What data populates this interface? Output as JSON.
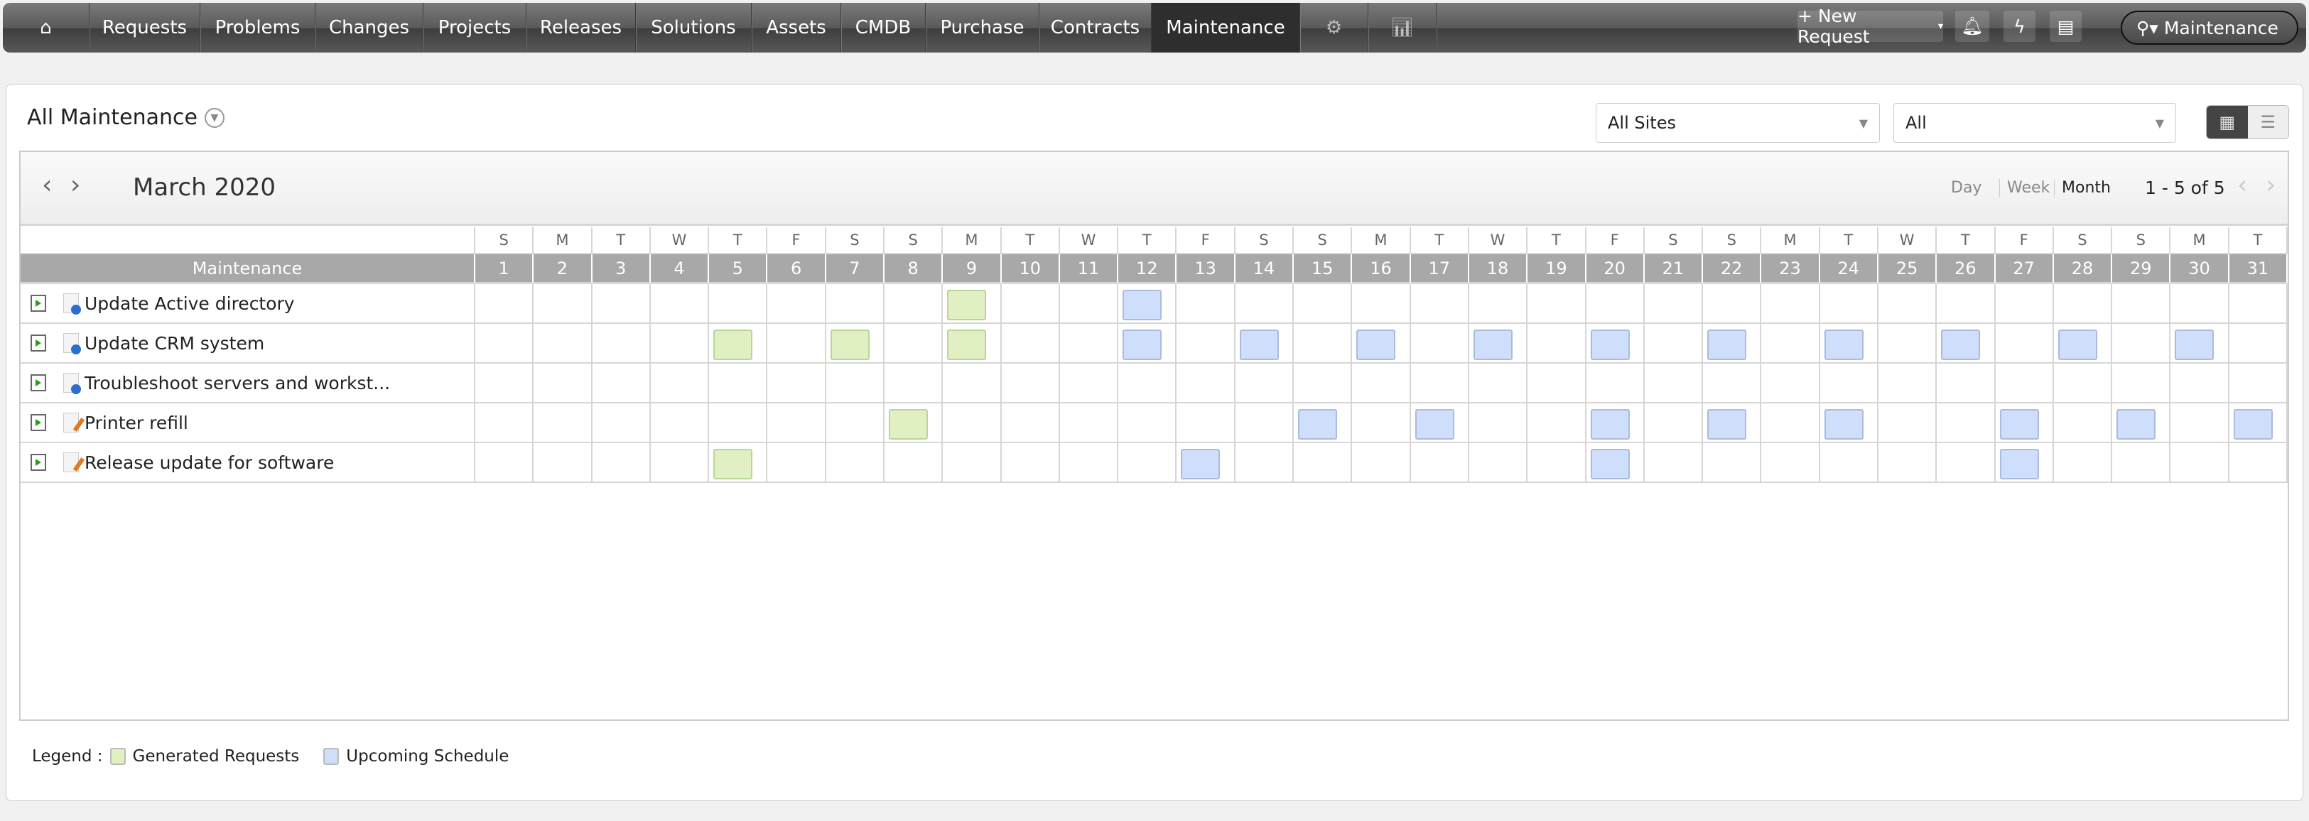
{
  "nav": {
    "items": [
      "Requests",
      "Problems",
      "Changes",
      "Projects",
      "Releases",
      "Solutions",
      "Assets",
      "CMDB",
      "Purchase",
      "Contracts",
      "Maintenance"
    ],
    "active": "Maintenance",
    "new_request": "+ New Request",
    "search_scope": "Maintenance"
  },
  "page": {
    "title": "All Maintenance",
    "site_select": "All Sites",
    "filter_select": "All"
  },
  "calendar": {
    "month": "March 2020",
    "views": [
      "Day",
      "Week",
      "Month"
    ],
    "active_view": "Month",
    "pagination": "1 - 5 of 5",
    "column_header": "Maintenance",
    "day_letters": [
      "S",
      "M",
      "T",
      "W",
      "T",
      "F",
      "S",
      "S",
      "M",
      "T",
      "W",
      "T",
      "F",
      "S",
      "S",
      "M",
      "T",
      "W",
      "T",
      "F",
      "S",
      "S",
      "M",
      "T",
      "W",
      "T",
      "F",
      "S",
      "S",
      "M",
      "T"
    ],
    "rows": [
      {
        "name": "Update Active directory",
        "icon": "globe",
        "generated": [
          9
        ],
        "upcoming": [
          12
        ]
      },
      {
        "name": "Update CRM system",
        "icon": "globe",
        "generated": [
          5,
          7,
          9
        ],
        "upcoming": [
          12,
          14,
          16,
          18,
          20,
          22,
          24,
          26,
          28,
          30
        ]
      },
      {
        "name": "Troubleshoot servers and workst...",
        "icon": "globe",
        "generated": [],
        "upcoming": []
      },
      {
        "name": "Printer refill",
        "icon": "pen",
        "generated": [
          8
        ],
        "upcoming": [
          15,
          17,
          20,
          22,
          24,
          27,
          29,
          31
        ]
      },
      {
        "name": "Release update for software",
        "icon": "pen",
        "generated": [
          5
        ],
        "upcoming": [
          13,
          20,
          27
        ]
      }
    ]
  },
  "legend": {
    "label": "Legend :",
    "generated": "Generated Requests",
    "upcoming": "Upcoming Schedule",
    "colors": {
      "generated": "#e1f0c3",
      "upcoming": "#cfdefa"
    }
  }
}
